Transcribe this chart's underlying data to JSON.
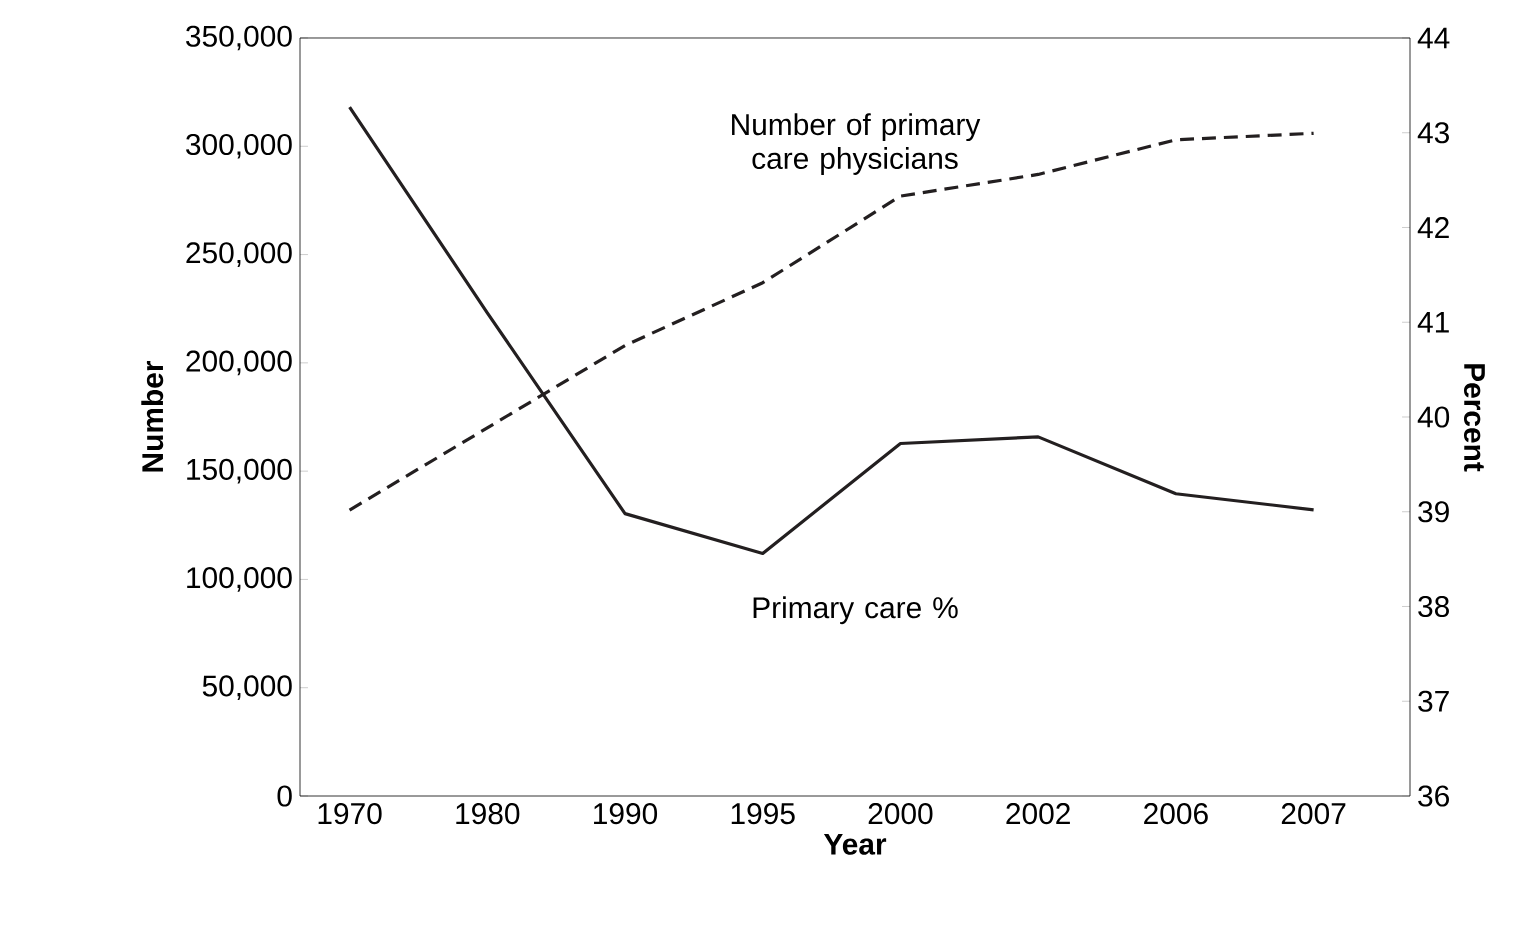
{
  "chart_data": {
    "type": "line",
    "categories": [
      "1970",
      "1980",
      "1990",
      "1995",
      "2000",
      "2002",
      "2006",
      "2007"
    ],
    "series": [
      {
        "name": "Number of primary care physicians",
        "color": "#231f20",
        "line_style": "dashed",
        "values": [
          132000,
          170000,
          208000,
          237000,
          277000,
          287000,
          303000,
          306000
        ]
      },
      {
        "name": "Primary care %",
        "color": "#231f20",
        "line_style": "solid",
        "axis": "y2",
        "values": [
          43.27,
          41.1,
          38.98,
          38.56,
          39.72,
          39.79,
          39.19,
          39.02
        ]
      }
    ],
    "xlabel": "Year",
    "ylabel": "Number",
    "y2label": "Percent",
    "ylim": [
      0,
      350000
    ],
    "yticks": [
      {
        "value": 0,
        "label": "0"
      },
      {
        "value": 50000,
        "label": "50,000"
      },
      {
        "value": 100000,
        "label": "100,000"
      },
      {
        "value": 150000,
        "label": "150,000"
      },
      {
        "value": 200000,
        "label": "200,000"
      },
      {
        "value": 250000,
        "label": "250,000"
      },
      {
        "value": 300000,
        "label": "300,000"
      },
      {
        "value": 350000,
        "label": "350,000"
      }
    ],
    "y2lim": [
      36,
      44
    ],
    "y2ticks": [
      36,
      37,
      38,
      39,
      40,
      41,
      42,
      43,
      44
    ]
  }
}
